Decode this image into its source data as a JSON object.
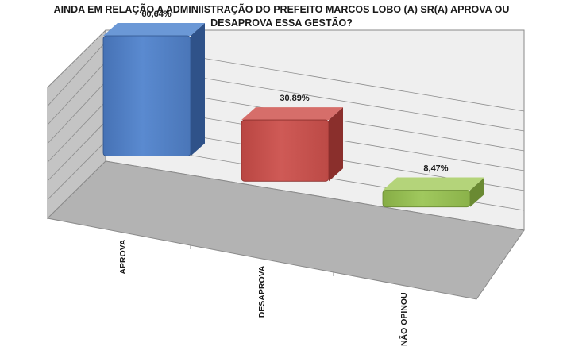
{
  "chart_data": {
    "type": "bar",
    "title_lines": [
      "AINDA EM RELAÇÃO A ADMINIISTRAÇÃO DO PREFEITO MARCOS LOBO (A) SR(A) APROVA OU",
      "DESAPROVA  ESSA GESTÃO?"
    ],
    "categories": [
      "APROVA",
      "DESAPROVA",
      "NÃO OPINOU"
    ],
    "values": [
      60.64,
      30.89,
      8.47
    ],
    "value_labels": [
      "60,64%",
      "30,89%",
      "8,47%"
    ],
    "colors": [
      "#4f81bd",
      "#c0504d",
      "#9bbb59"
    ],
    "ylim": [
      0,
      70
    ],
    "grid": true,
    "legend": "none",
    "style": "3d-bar"
  }
}
